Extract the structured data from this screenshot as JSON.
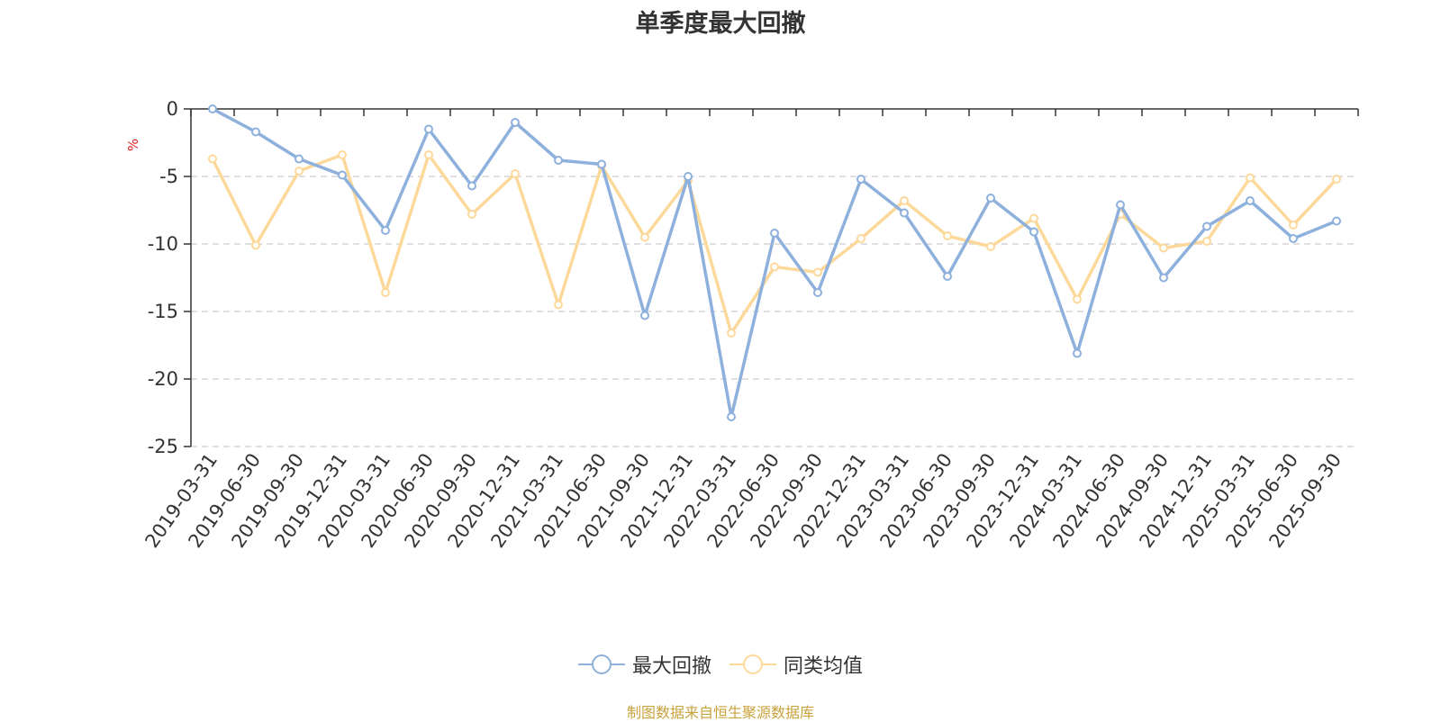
{
  "chart_data": {
    "type": "line",
    "title": "单季度最大回撤",
    "ylabel": "%",
    "xlabel": "",
    "ylim": [
      -25,
      0
    ],
    "yticks": [
      0,
      -5,
      -10,
      -15,
      -20,
      -25
    ],
    "grid": true,
    "legend_position": "bottom",
    "categories": [
      "2019-03-31",
      "2019-06-30",
      "2019-09-30",
      "2019-12-31",
      "2020-03-31",
      "2020-06-30",
      "2020-09-30",
      "2020-12-31",
      "2021-03-31",
      "2021-06-30",
      "2021-09-30",
      "2021-12-31",
      "2022-03-31",
      "2022-06-30",
      "2022-09-30",
      "2022-12-31",
      "2023-03-31",
      "2023-06-30",
      "2023-09-30",
      "2023-12-31",
      "2024-03-31",
      "2024-06-30",
      "2024-09-30",
      "2024-12-31",
      "2025-03-31",
      "2025-06-30",
      "2025-09-30"
    ],
    "series": [
      {
        "name": "最大回撤",
        "color": "#8eb0dc",
        "values": [
          0.0,
          -1.7,
          -3.7,
          -4.9,
          -9.0,
          -1.5,
          -5.7,
          -1.0,
          -3.8,
          -4.1,
          -15.3,
          -5.0,
          -22.8,
          -9.2,
          -13.6,
          -5.2,
          -7.7,
          -12.4,
          -6.6,
          -9.1,
          -18.1,
          -7.1,
          -12.5,
          -8.7,
          -6.8,
          -9.6,
          -8.3
        ]
      },
      {
        "name": "同类均值",
        "color": "#fcd99a",
        "values": [
          -3.7,
          -10.1,
          -4.6,
          -3.4,
          -13.6,
          -3.4,
          -7.8,
          -4.8,
          -14.5,
          -4.2,
          -9.5,
          -5.3,
          -16.6,
          -11.7,
          -12.1,
          -9.6,
          -6.8,
          -9.4,
          -10.2,
          -8.1,
          -14.1,
          -7.8,
          -10.3,
          -9.8,
          -5.1,
          -8.6,
          -5.2
        ]
      }
    ]
  },
  "source_note": "制图数据来自恒生聚源数据库"
}
